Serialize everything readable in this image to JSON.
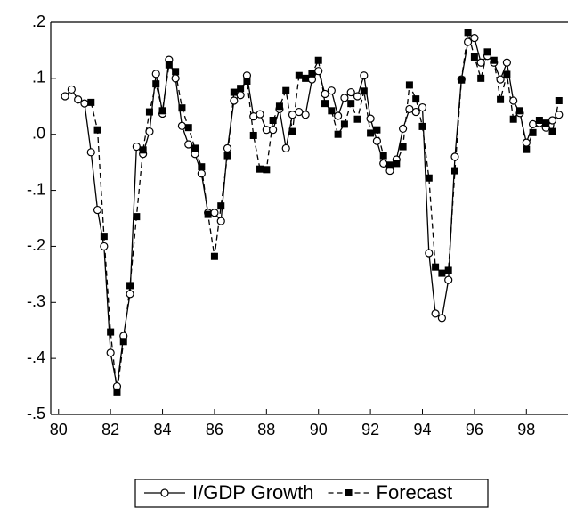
{
  "chart_data": {
    "type": "line",
    "x": [
      80.25,
      80.5,
      80.75,
      81,
      81.25,
      81.5,
      81.75,
      82,
      82.25,
      82.5,
      82.75,
      83,
      83.25,
      83.5,
      83.75,
      84,
      84.25,
      84.5,
      84.75,
      85,
      85.25,
      85.5,
      85.75,
      86,
      86.25,
      86.5,
      86.75,
      87,
      87.25,
      87.5,
      87.75,
      88,
      88.25,
      88.5,
      88.75,
      89,
      89.25,
      89.5,
      89.75,
      90,
      90.25,
      90.5,
      90.75,
      91,
      91.25,
      91.5,
      91.75,
      92,
      92.25,
      92.5,
      92.75,
      93,
      93.25,
      93.5,
      93.75,
      94,
      94.25,
      94.5,
      94.75,
      95,
      95.25,
      95.5,
      95.75,
      96,
      96.25,
      96.5,
      96.75,
      97,
      97.25,
      97.5,
      97.75,
      98,
      98.25,
      98.5,
      98.75,
      99,
      99.25
    ],
    "series": [
      {
        "name": "I/GDP Growth",
        "color": "#000000",
        "line_style": "solid",
        "marker": "circle",
        "values": [
          0.068,
          0.08,
          0.062,
          0.055,
          -0.032,
          -0.135,
          -0.2,
          -0.39,
          -0.45,
          -0.36,
          -0.285,
          -0.022,
          -0.035,
          0.005,
          0.108,
          0.037,
          0.133,
          0.1,
          0.015,
          -0.018,
          -0.035,
          -0.07,
          -0.14,
          -0.14,
          -0.155,
          -0.025,
          0.06,
          0.07,
          0.105,
          0.032,
          0.036,
          0.008,
          0.008,
          0.045,
          -0.025,
          0.035,
          0.04,
          0.035,
          0.098,
          0.113,
          0.072,
          0.078,
          0.033,
          0.065,
          0.075,
          0.068,
          0.105,
          0.028,
          -0.012,
          -0.052,
          -0.065,
          -0.045,
          0.01,
          0.045,
          0.04,
          0.048,
          -0.212,
          -0.32,
          -0.328,
          -0.26,
          -0.04,
          0.098,
          0.165,
          0.172,
          0.128,
          0.14,
          0.128,
          0.098,
          0.128,
          0.06,
          0.038,
          -0.015,
          0.018,
          0.02,
          0.012,
          0.025,
          0.035
        ]
      },
      {
        "name": "Forecast",
        "color": "#000000",
        "line_style": "dashed",
        "marker": "square",
        "values": [
          null,
          null,
          null,
          null,
          0.057,
          0.008,
          -0.182,
          -0.353,
          -0.46,
          -0.37,
          -0.27,
          -0.147,
          -0.028,
          0.04,
          0.09,
          0.042,
          0.124,
          0.112,
          0.047,
          0.012,
          -0.025,
          -0.058,
          -0.143,
          -0.218,
          -0.128,
          -0.038,
          0.075,
          0.082,
          0.095,
          -0.002,
          -0.062,
          -0.063,
          0.025,
          0.05,
          0.078,
          0.005,
          0.105,
          0.1,
          0.108,
          0.132,
          0.055,
          0.042,
          0.0,
          0.018,
          0.055,
          0.027,
          0.077,
          0.002,
          0.008,
          -0.038,
          -0.055,
          -0.052,
          -0.022,
          0.088,
          0.063,
          0.014,
          -0.078,
          -0.237,
          -0.248,
          -0.243,
          -0.065,
          0.097,
          0.182,
          0.138,
          0.1,
          0.147,
          0.132,
          0.062,
          0.107,
          0.027,
          0.042,
          -0.027,
          0.003,
          0.025,
          0.02,
          0.005,
          0.06
        ]
      }
    ],
    "xlim": [
      79.7,
      99.6
    ],
    "xticks": [
      80,
      82,
      84,
      86,
      88,
      90,
      92,
      94,
      96,
      98
    ],
    "ylim": [
      -0.5,
      0.2
    ],
    "yticks": [
      {
        "value": -0.5,
        "label": "-.5"
      },
      {
        "value": -0.4,
        "label": "-.4"
      },
      {
        "value": -0.3,
        "label": "-.3"
      },
      {
        "value": -0.2,
        "label": "-.2"
      },
      {
        "value": -0.1,
        "label": "-.1"
      },
      {
        "value": 0,
        "label": ".0"
      },
      {
        "value": 0.1,
        "label": ".1"
      },
      {
        "value": 0.2,
        "label": ".2"
      }
    ],
    "legend": "bottom"
  }
}
